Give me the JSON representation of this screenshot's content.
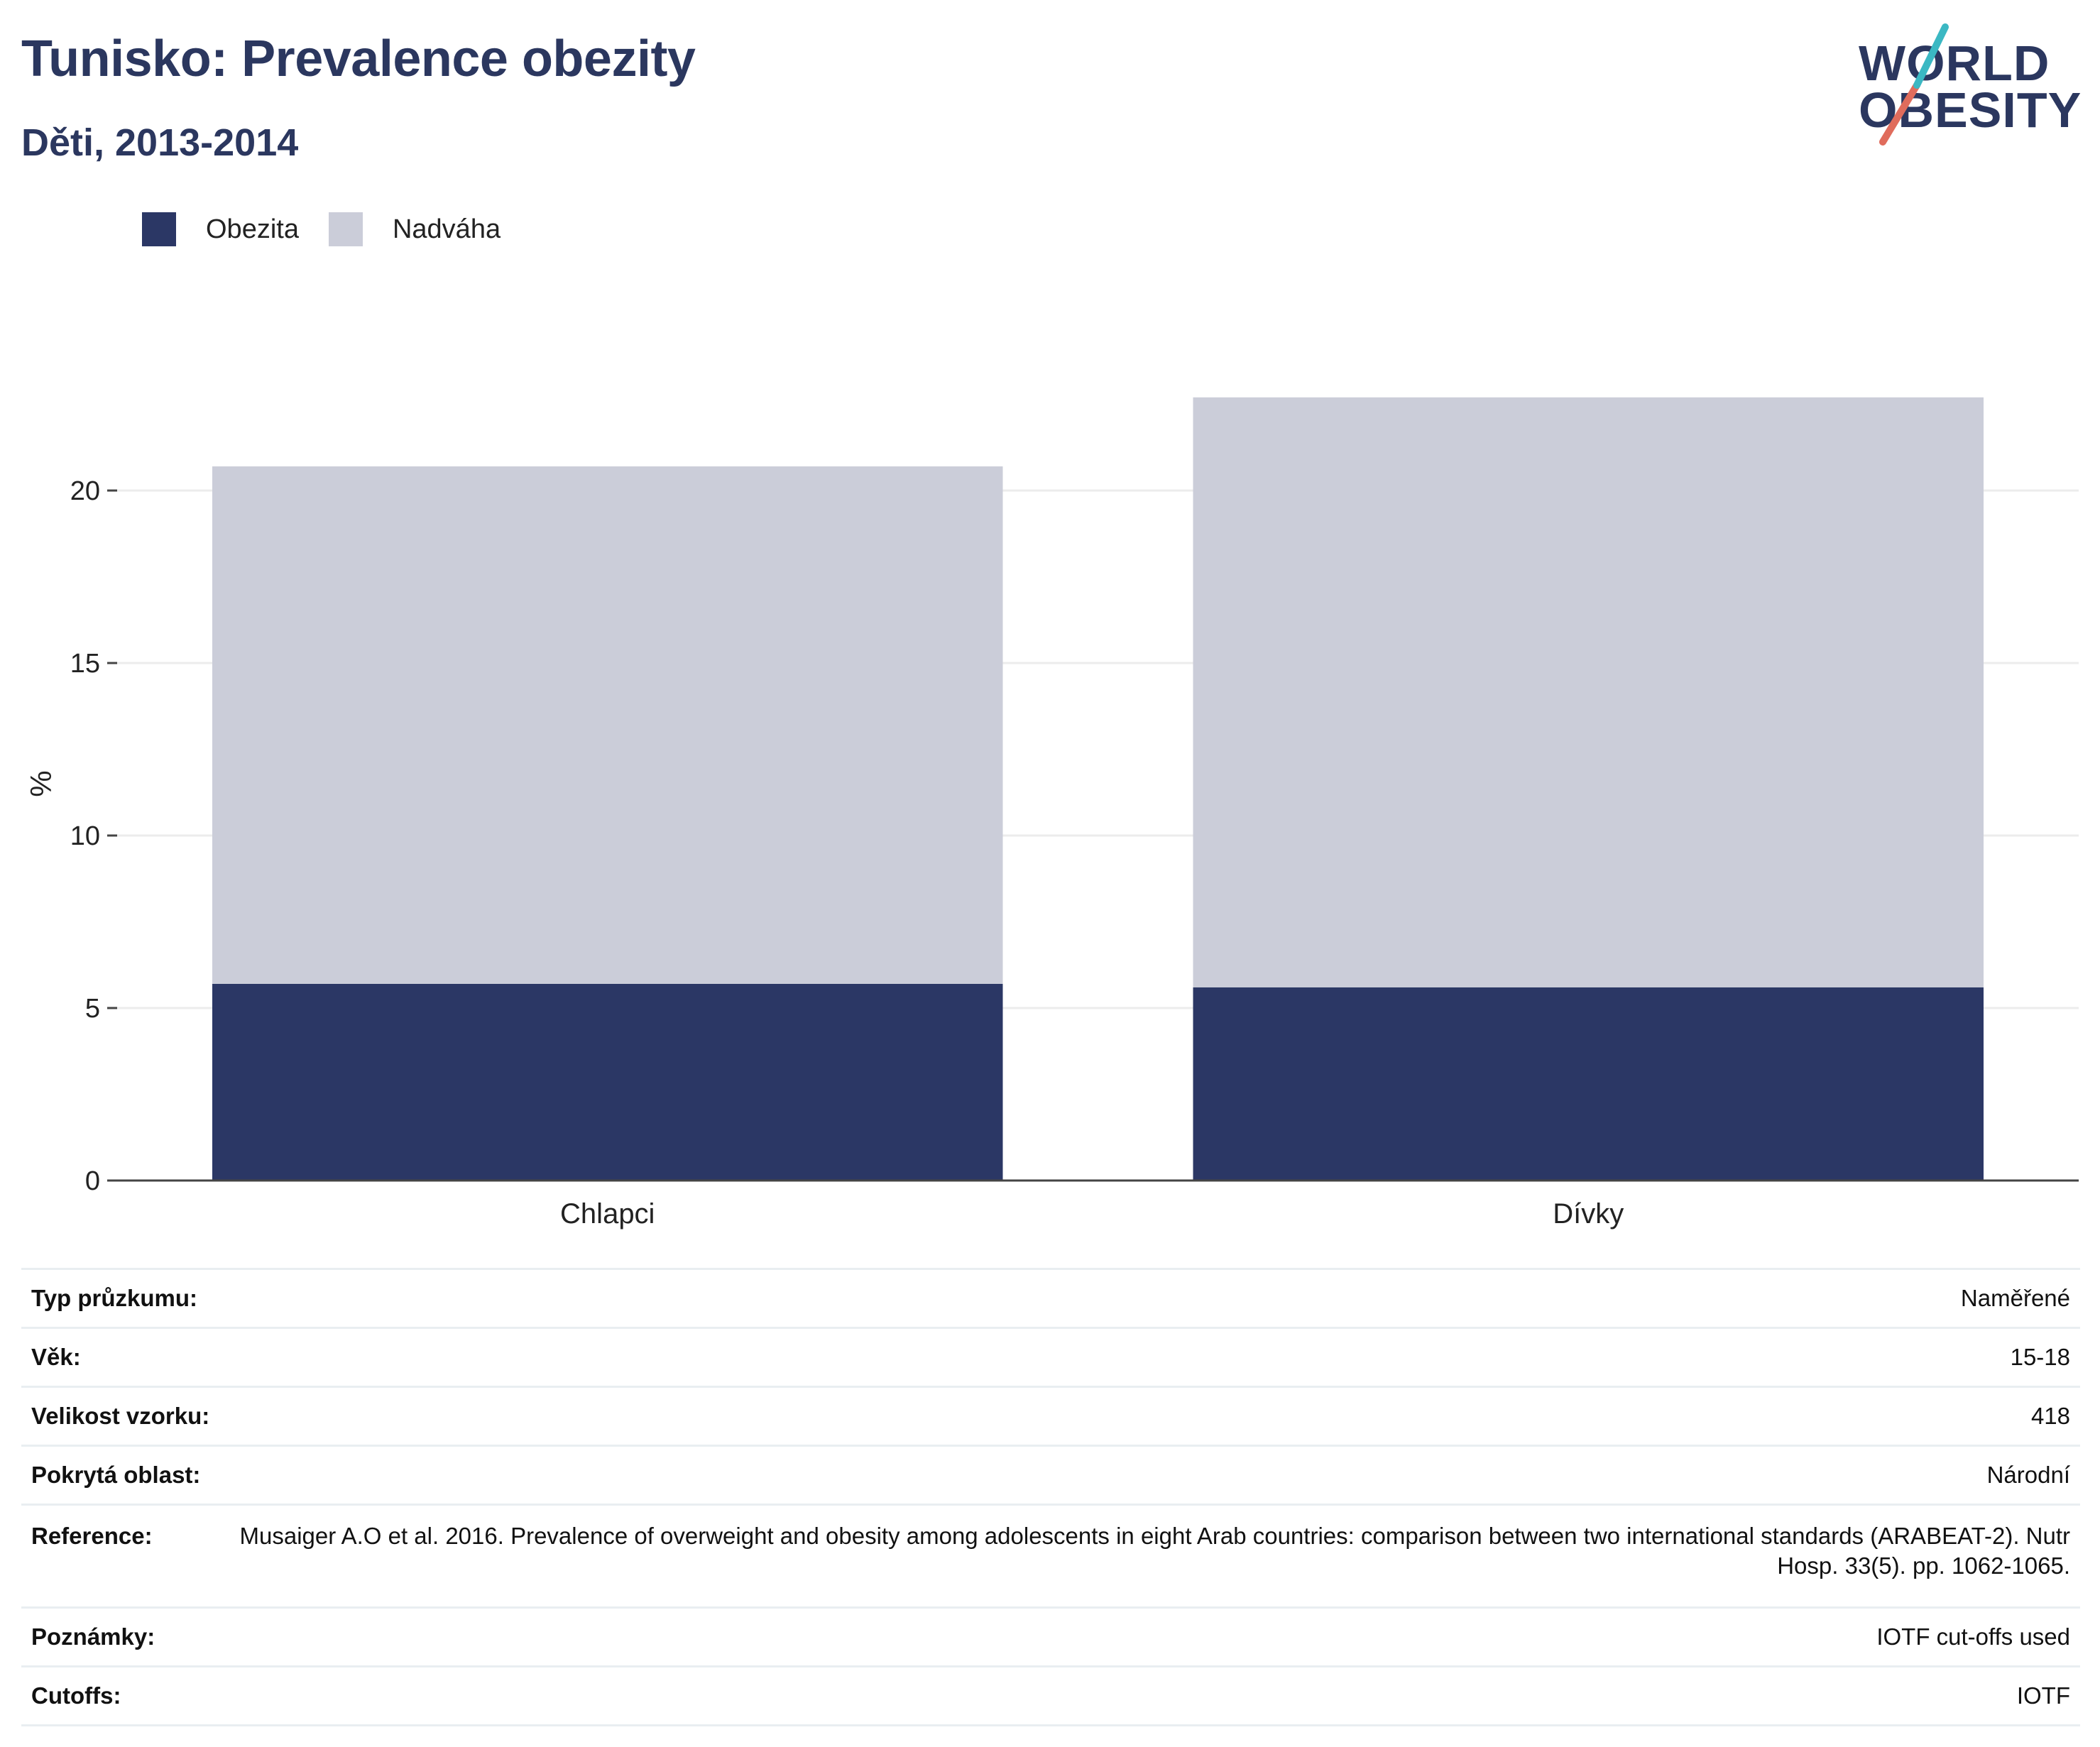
{
  "title": "Tunisko: Prevalence obezity",
  "subtitle": "Děti, 2013-2014",
  "logo": {
    "line1": "WORLD",
    "line2": "OBESITY"
  },
  "colors": {
    "obesity": "#2b3765",
    "overweight": "#cbcdd9",
    "title": "#2b375f",
    "grid": "#ececec",
    "axis": "#444444"
  },
  "legend": [
    {
      "label": "Obezita",
      "color": "#2b3765"
    },
    {
      "label": "Nadváha",
      "color": "#cbcdd9"
    }
  ],
  "chart_data": {
    "type": "bar",
    "stacked": true,
    "categories": [
      "Chlapci",
      "Dívky"
    ],
    "series": [
      {
        "name": "Obezita",
        "values": [
          5.7,
          5.6
        ]
      },
      {
        "name": "Nadváha",
        "values": [
          15.0,
          17.1
        ]
      }
    ],
    "ylabel": "%",
    "xlabel": "",
    "ylim": [
      0,
      23
    ],
    "yticks": [
      0,
      5,
      10,
      15,
      20
    ],
    "grid": true,
    "legend_position": "top-left"
  },
  "metadata": [
    {
      "key": "Typ průzkumu:",
      "value": "Naměřené"
    },
    {
      "key": "Věk:",
      "value": "15-18"
    },
    {
      "key": "Velikost vzorku:",
      "value": "418"
    },
    {
      "key": "Pokrytá oblast:",
      "value": "Národní"
    },
    {
      "key": "Reference:",
      "value": "Musaiger A.O et al. 2016. Prevalence of overweight and obesity among adolescents in eight Arab countries: comparison between two international standards (ARABEAT-2). Nutr Hosp. 33(5). pp. 1062-1065."
    },
    {
      "key": "Poznámky:",
      "value": "IOTF cut-offs used"
    },
    {
      "key": "Cutoffs:",
      "value": "IOTF"
    }
  ]
}
